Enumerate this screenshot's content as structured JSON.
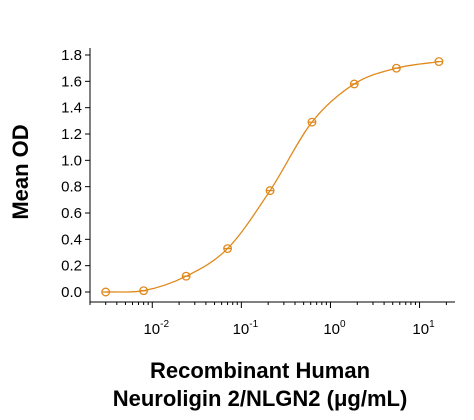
{
  "chart_data": {
    "type": "scatter",
    "title": "",
    "xlabel_lines": [
      "Recombinant Human",
      "Neuroligin 2/NLGN2 (μg/mL)"
    ],
    "ylabel": "Mean OD",
    "x_scale": "log",
    "xlim": [
      0.002,
      25
    ],
    "ylim": [
      0,
      1.8
    ],
    "y_ticks": [
      0.0,
      0.2,
      0.4,
      0.6,
      0.8,
      1.0,
      1.2,
      1.4,
      1.6,
      1.8
    ],
    "y_tick_labels": [
      "0.0",
      "0.2",
      "0.4",
      "0.6",
      "0.8",
      "1.0",
      "1.2",
      "1.4",
      "1.6",
      "1.8"
    ],
    "x_ticks": [
      {
        "value": 0.01,
        "base": "10",
        "exp": "-2"
      },
      {
        "value": 0.1,
        "base": "10",
        "exp": "-1"
      },
      {
        "value": 1,
        "base": "10",
        "exp": "0"
      },
      {
        "value": 10,
        "base": "10",
        "exp": "1"
      }
    ],
    "color": "#e08a1e",
    "grid": false,
    "series": [
      {
        "x": [
          0.003,
          0.008,
          0.024,
          0.07,
          0.21,
          0.62,
          1.85,
          5.5,
          16.5
        ],
        "y": [
          0.0,
          0.01,
          0.12,
          0.33,
          0.77,
          1.29,
          1.58,
          1.7,
          1.75
        ]
      }
    ]
  }
}
